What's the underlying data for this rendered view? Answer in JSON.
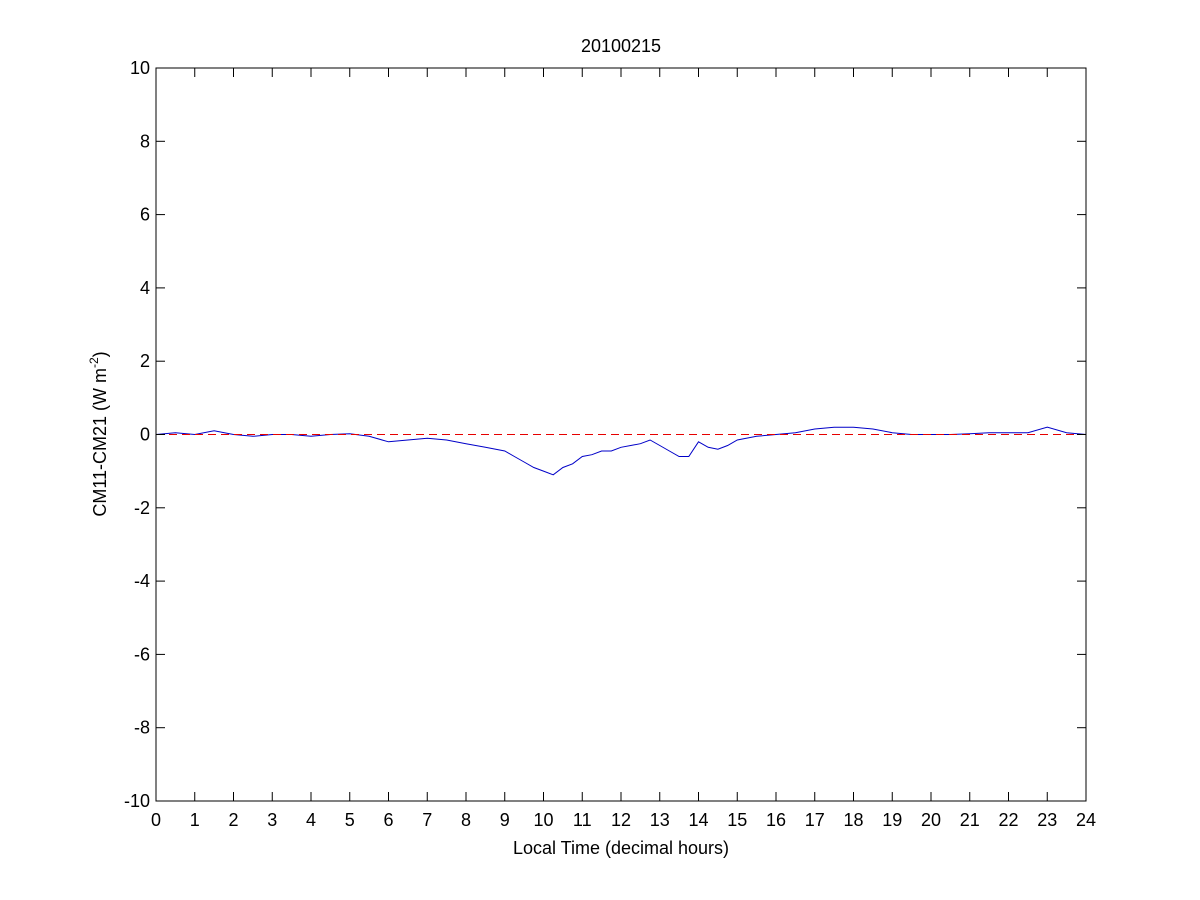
{
  "chart_data": {
    "type": "line",
    "title": "20100215",
    "xlabel": "Local Time (decimal hours)",
    "ylabel": {
      "base": "CM11-CM21 (W m",
      "superscript": "-2",
      "close": ")"
    },
    "xlim": [
      0,
      24
    ],
    "ylim": [
      -10,
      10
    ],
    "x_ticks": [
      0,
      1,
      2,
      3,
      4,
      5,
      6,
      7,
      8,
      9,
      10,
      11,
      12,
      13,
      14,
      15,
      16,
      17,
      18,
      19,
      20,
      21,
      22,
      23,
      24
    ],
    "y_ticks": [
      -10,
      -8,
      -6,
      -4,
      -2,
      0,
      2,
      4,
      6,
      8,
      10
    ],
    "grid": false,
    "legend": "none",
    "series": [
      {
        "color": "#0000c8",
        "style": "solid",
        "x": [
          0,
          0.5,
          1,
          1.5,
          2,
          2.5,
          3,
          3.5,
          4,
          4.5,
          5,
          5.5,
          6,
          6.5,
          7,
          7.5,
          8,
          8.5,
          9,
          9.25,
          9.5,
          9.75,
          10,
          10.25,
          10.5,
          10.75,
          11,
          11.25,
          11.5,
          11.75,
          12,
          12.25,
          12.5,
          12.75,
          13,
          13.25,
          13.5,
          13.75,
          14,
          14.25,
          14.5,
          14.75,
          15,
          15.5,
          16,
          16.5,
          17,
          17.5,
          18,
          18.5,
          19,
          19.5,
          20,
          20.5,
          21,
          21.5,
          22,
          22.5,
          23,
          23.5,
          24
        ],
        "y": [
          0,
          0.05,
          0,
          0.1,
          0,
          -0.05,
          0,
          0,
          -0.05,
          0,
          0.02,
          -0.05,
          -0.2,
          -0.15,
          -0.1,
          -0.15,
          -0.25,
          -0.35,
          -0.45,
          -0.6,
          -0.75,
          -0.9,
          -1.0,
          -1.1,
          -0.9,
          -0.8,
          -0.6,
          -0.55,
          -0.45,
          -0.45,
          -0.35,
          -0.3,
          -0.25,
          -0.15,
          -0.3,
          -0.45,
          -0.6,
          -0.6,
          -0.2,
          -0.35,
          -0.4,
          -0.3,
          -0.15,
          -0.05,
          0,
          0.05,
          0.15,
          0.2,
          0.2,
          0.15,
          0.05,
          0,
          0,
          0,
          0.02,
          0.05,
          0.05,
          0.05,
          0.2,
          0.05,
          0
        ]
      },
      {
        "color": "#e60000",
        "style": "dashed",
        "x": [
          0,
          24
        ],
        "y": [
          0,
          0
        ]
      }
    ]
  }
}
